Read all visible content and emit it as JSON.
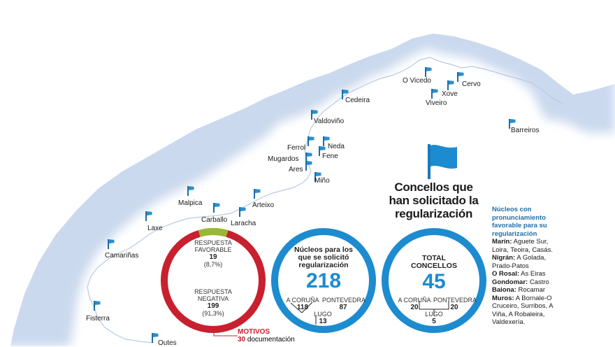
{
  "places": [
    {
      "id": "o-vicedo",
      "name": "O Vicedo"
    },
    {
      "id": "cervo",
      "name": "Cervo"
    },
    {
      "id": "xove",
      "name": "Xove"
    },
    {
      "id": "viveiro",
      "name": "Viveiro"
    },
    {
      "id": "cedeira",
      "name": "Cedeira"
    },
    {
      "id": "barreiros",
      "name": "Barreiros"
    },
    {
      "id": "valdovino",
      "name": "Valdoviño"
    },
    {
      "id": "ferrol",
      "name": "Ferrol"
    },
    {
      "id": "neda",
      "name": "Neda"
    },
    {
      "id": "fene",
      "name": "Fene"
    },
    {
      "id": "mugardos",
      "name": "Mugardos"
    },
    {
      "id": "ares",
      "name": "Ares"
    },
    {
      "id": "mino",
      "name": "Miño"
    },
    {
      "id": "arteixo",
      "name": "Arteixo"
    },
    {
      "id": "malpica",
      "name": "Malpica"
    },
    {
      "id": "carballo",
      "name": "Carballo"
    },
    {
      "id": "laracha",
      "name": "Laracha"
    },
    {
      "id": "laxe",
      "name": "Laxe"
    },
    {
      "id": "camarinas",
      "name": "Camariñas"
    },
    {
      "id": "fisterra",
      "name": "Fisterra"
    },
    {
      "id": "outes",
      "name": "Outes"
    }
  ],
  "title": "Concellos que han solicitado la regularización",
  "ring1": {
    "favorable_label": "RESPUESTA FAVORABLE",
    "favorable_value": "19",
    "favorable_pct": "(8,7%)",
    "negative_label": "RESPUESTA NEGATIVA",
    "negative_value": "199",
    "negative_pct": "(91,3%)",
    "colors": {
      "favorable": "#9ab832",
      "negative": "#c8202f"
    }
  },
  "motivos": {
    "label": "MOTIVOS",
    "value": "30",
    "text": "documentación"
  },
  "ring2": {
    "label": "Núcleos para los que se solicitó regularización",
    "total": "218",
    "a_coruna_label": "A CORUÑA",
    "a_coruna_value": "118",
    "pontevedra_label": "PONTEVEDRA",
    "pontevedra_value": "87",
    "lugo_label": "LUGO",
    "lugo_value": "13"
  },
  "ring3": {
    "label": "TOTAL CONCELLOS",
    "total": "45",
    "a_coruna_label": "A CORUÑA",
    "a_coruna_value": "20",
    "pontevedra_label": "PONTEVEDRA",
    "pontevedra_value": "20",
    "lugo_label": "LUGO",
    "lugo_value": "5"
  },
  "sidebar": {
    "heading": "Núcleos con pronunciamiento favorable para su regularización",
    "entries": [
      {
        "place": "Marín:",
        "detail": " Aguete Sur, Loira, Teoira, Casás."
      },
      {
        "place": "Nigrán:",
        "detail": " A Golada, Prado-Patos"
      },
      {
        "place": "O Rosal:",
        "detail": " As Eiras"
      },
      {
        "place": "Gondomar:",
        "detail": " Castro"
      },
      {
        "place": "Baiona:",
        "detail": " Rocamar"
      },
      {
        "place": "Muros:",
        "detail": " A Bornale-O Cruceiro, Surribos, A Viña, A Robaleira, Valdexería."
      }
    ]
  },
  "colors": {
    "accent": "#1d8bd0",
    "land": "#ffffff",
    "sea": "#dce6f3",
    "red": "#c8202f",
    "green": "#9ab832"
  }
}
